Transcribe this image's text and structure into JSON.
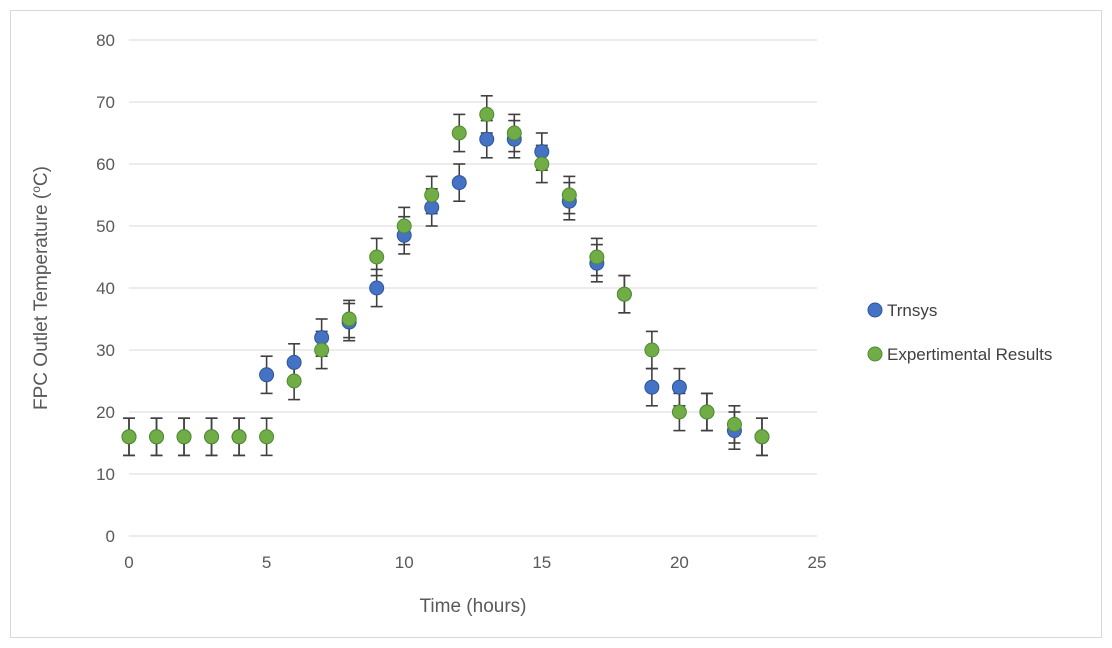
{
  "chart_data": {
    "type": "scatter",
    "title": "",
    "xlabel": "Time (hours)",
    "ylabel": "FPC Outlet Temperature (oC)",
    "ylabel_main": "FPC Outlet Temperature (",
    "ylabel_sup": "o",
    "ylabel_tail": "C)",
    "xlim": [
      0,
      25
    ],
    "ylim": [
      0,
      80
    ],
    "xticks": [
      0,
      5,
      10,
      15,
      20,
      25
    ],
    "yticks": [
      0,
      10,
      20,
      30,
      40,
      50,
      60,
      70,
      80
    ],
    "grid": "horizontal",
    "legend_position": "right",
    "error_bar": 3,
    "series": [
      {
        "name": "Trnsys",
        "color": "#4472c4",
        "x": [
          0,
          1,
          2,
          3,
          4,
          5,
          6,
          7,
          8,
          9,
          10,
          11,
          12,
          13,
          14,
          15,
          16,
          17,
          18,
          19,
          20,
          21,
          22,
          23
        ],
        "y": [
          16,
          16,
          16,
          16,
          16,
          26,
          28,
          32,
          34.5,
          40,
          48.5,
          53,
          57,
          64,
          64,
          62,
          54,
          44,
          39,
          24,
          24,
          20,
          17,
          16
        ]
      },
      {
        "name": "Expertimental Results",
        "color": "#70ad47",
        "x": [
          0,
          1,
          2,
          3,
          4,
          5,
          6,
          7,
          8,
          9,
          10,
          11,
          12,
          13,
          14,
          15,
          16,
          17,
          18,
          19,
          20,
          21,
          22,
          23
        ],
        "y": [
          16,
          16,
          16,
          16,
          16,
          16,
          25,
          30,
          35,
          45,
          50,
          55,
          65,
          68,
          65,
          60,
          55,
          45,
          39,
          30,
          20,
          20,
          18,
          16
        ]
      }
    ]
  }
}
